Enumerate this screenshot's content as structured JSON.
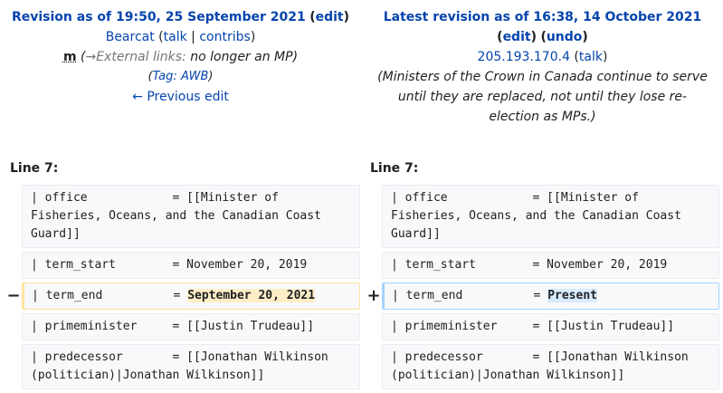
{
  "left": {
    "revision_prefix": "Revision as of 19:50, 25 September 2021",
    "edit_link": "edit",
    "user": "Bearcat",
    "talk": "talk",
    "contribs": "contribs",
    "minor_mark": "m",
    "summary_arrow": "→External links:",
    "summary_text": "no longer an MP",
    "tag_label": "Tag:",
    "tag_value": "AWB",
    "previous_edit": "← Previous edit",
    "line_label": "Line 7:"
  },
  "right": {
    "revision_prefix": "Latest revision as of 16:38, 14 October 2021",
    "edit_link": "edit",
    "undo_link": "undo",
    "user": "205.193.170.4",
    "talk": "talk",
    "comment": "(Ministers of the Crown in Canada continue to serve until they are replaced, not until they lose re-election as MPs.)",
    "line_label": "Line 7:"
  },
  "diff": {
    "minus": "−",
    "plus": "+",
    "office_old": "| office            = [[Minister of\nFisheries, Oceans, and the Canadian Coast\nGuard]]",
    "office_new": "| office            = [[Minister of\nFisheries, Oceans, and the Canadian Coast\nGuard]]",
    "term_start_old": "| term_start        = November 20, 2019",
    "term_start_new": "| term_start        = November 20, 2019",
    "term_end_prefix": "| term_end          = ",
    "term_end_removed": "September 20, 2021",
    "term_end_added": "Present",
    "pm_old": "| primeminister     = [[Justin Trudeau]]",
    "pm_new": "| primeminister     = [[Justin Trudeau]]",
    "pred_old": "| predecessor       = [[Jonathan Wilkinson\n(politician)|Jonathan Wilkinson]]",
    "pred_new": "| predecessor       = [[Jonathan Wilkinson\n(politician)|Jonathan Wilkinson]]"
  },
  "colors": {
    "link": "#0645ad",
    "deleted_border": "#ffe49c",
    "added_border": "#a3d3ff",
    "deleted_highlight": "#feeec8",
    "added_highlight": "#d8ecff"
  }
}
